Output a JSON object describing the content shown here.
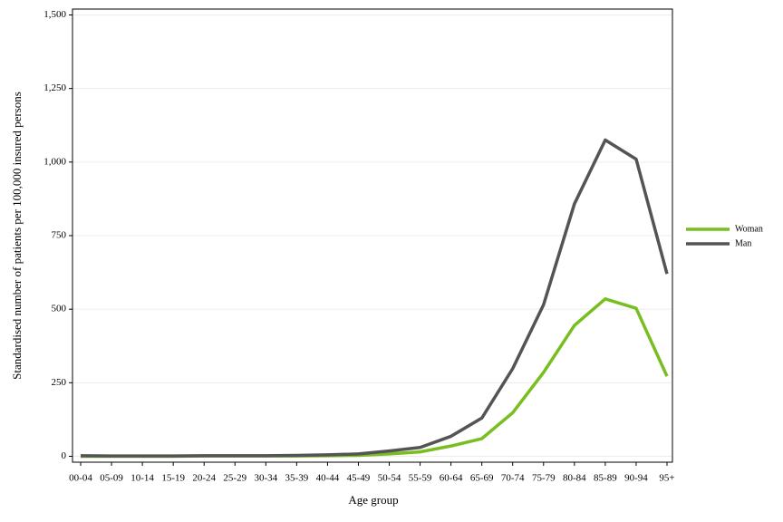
{
  "chart_data": {
    "type": "line",
    "x_label": "Age group",
    "y_label": "Standardised number of patients per 100,000 insured persons",
    "categories": [
      "00-04",
      "05-09",
      "10-14",
      "15-19",
      "20-24",
      "25-29",
      "30-34",
      "35-39",
      "40-44",
      "45-49",
      "50-54",
      "55-59",
      "60-64",
      "65-69",
      "70-74",
      "75-79",
      "80-84",
      "85-89",
      "90-94",
      "95+"
    ],
    "series": [
      {
        "name": "Woman",
        "color": "#78be20",
        "values": [
          0,
          0,
          0,
          0,
          1,
          1,
          1,
          1,
          2,
          3,
          8,
          15,
          35,
          60,
          148,
          285,
          445,
          535,
          503,
          272
        ]
      },
      {
        "name": "Man",
        "color": "#545454",
        "values": [
          2,
          1,
          1,
          1,
          2,
          2,
          2,
          3,
          5,
          8,
          18,
          30,
          68,
          130,
          298,
          515,
          858,
          1075,
          1010,
          620
        ]
      }
    ],
    "ylim": [
      -20,
      1520
    ],
    "yticks": [
      0,
      250,
      500,
      750,
      {
        "value": 1000,
        "label": "1,000"
      },
      {
        "value": 1250,
        "label": "1,250"
      },
      {
        "value": 1500,
        "label": "1,500"
      }
    ],
    "grid": true,
    "legend": "right"
  }
}
